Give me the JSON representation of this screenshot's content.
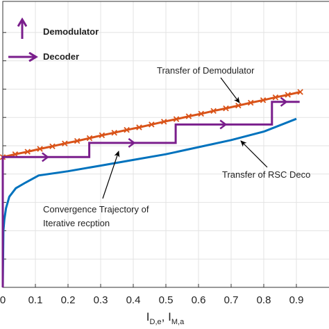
{
  "chart_data": {
    "type": "line",
    "xlabel": "I_{D,e}, I_{M,a}",
    "xlabel_parts": {
      "base1": "I",
      "sub1": "D,e",
      "sep": ", ",
      "base2": "I",
      "sub2": "M,a"
    },
    "xlim": [
      0,
      0.9
    ],
    "ylim": [
      0,
      1
    ],
    "x_ticks": [
      "0",
      "0.1",
      "0.2",
      "0.3",
      "0.4",
      "0.5",
      "0.6",
      "0.7",
      "0.8",
      "0.9"
    ],
    "x_tick_values": [
      0,
      0.1,
      0.2,
      0.3,
      0.4,
      0.5,
      0.6,
      0.7,
      0.8,
      0.9
    ],
    "y_gridlines": [
      0.1,
      0.2,
      0.3,
      0.4,
      0.5,
      0.6,
      0.7,
      0.8,
      0.9
    ],
    "grid": true,
    "legend": {
      "position": "top-left",
      "entries": [
        {
          "label": "Demodulator",
          "color": "#7a1e8c",
          "marker": "up-arrow"
        },
        {
          "label": "Decoder",
          "color": "#7a1e8c",
          "marker": "right-arrow"
        }
      ]
    },
    "series": [
      {
        "name": "Transfer of Demodulator",
        "color": "#d95319",
        "marker": "x",
        "x": [
          0,
          0.038,
          0.076,
          0.114,
          0.152,
          0.19,
          0.228,
          0.266,
          0.304,
          0.342,
          0.38,
          0.418,
          0.456,
          0.494,
          0.532,
          0.57,
          0.608,
          0.646,
          0.684,
          0.722,
          0.76,
          0.798,
          0.836,
          0.874,
          0.912
        ],
        "y": [
          0.46,
          0.47,
          0.479,
          0.489,
          0.498,
          0.508,
          0.517,
          0.527,
          0.537,
          0.546,
          0.556,
          0.565,
          0.575,
          0.585,
          0.594,
          0.604,
          0.613,
          0.623,
          0.632,
          0.642,
          0.652,
          0.661,
          0.671,
          0.68,
          0.69
        ]
      },
      {
        "name": "Transfer of RSC Decoder",
        "color": "#0072bd",
        "x": [
          0,
          0.002,
          0.005,
          0.01,
          0.02,
          0.04,
          0.07,
          0.11,
          0.2,
          0.3,
          0.4,
          0.5,
          0.6,
          0.7,
          0.8,
          0.9
        ],
        "y": [
          0,
          0.2,
          0.24,
          0.28,
          0.32,
          0.35,
          0.37,
          0.395,
          0.41,
          0.43,
          0.45,
          0.47,
          0.495,
          0.52,
          0.55,
          0.595
        ]
      },
      {
        "name": "Convergence Trajectory of Iterative recption",
        "color": "#7a1e8c",
        "x": [
          0,
          0,
          0.265,
          0.265,
          0.53,
          0.53,
          0.825,
          0.825,
          0.91
        ],
        "y": [
          0,
          0.46,
          0.46,
          0.51,
          0.51,
          0.575,
          0.575,
          0.655,
          0.655
        ]
      }
    ],
    "annotations": [
      {
        "text": "Transfer of Demodulator",
        "target": "Transfer of Demodulator"
      },
      {
        "text": "Transfer of RSC Deco",
        "target": "Transfer of RSC Decoder"
      },
      {
        "text": "Convergence Trajectory of",
        "target": "Convergence Trajectory of Iterative recption"
      },
      {
        "text": "Iterative recption",
        "target": "Convergence Trajectory of Iterative recption"
      }
    ]
  }
}
